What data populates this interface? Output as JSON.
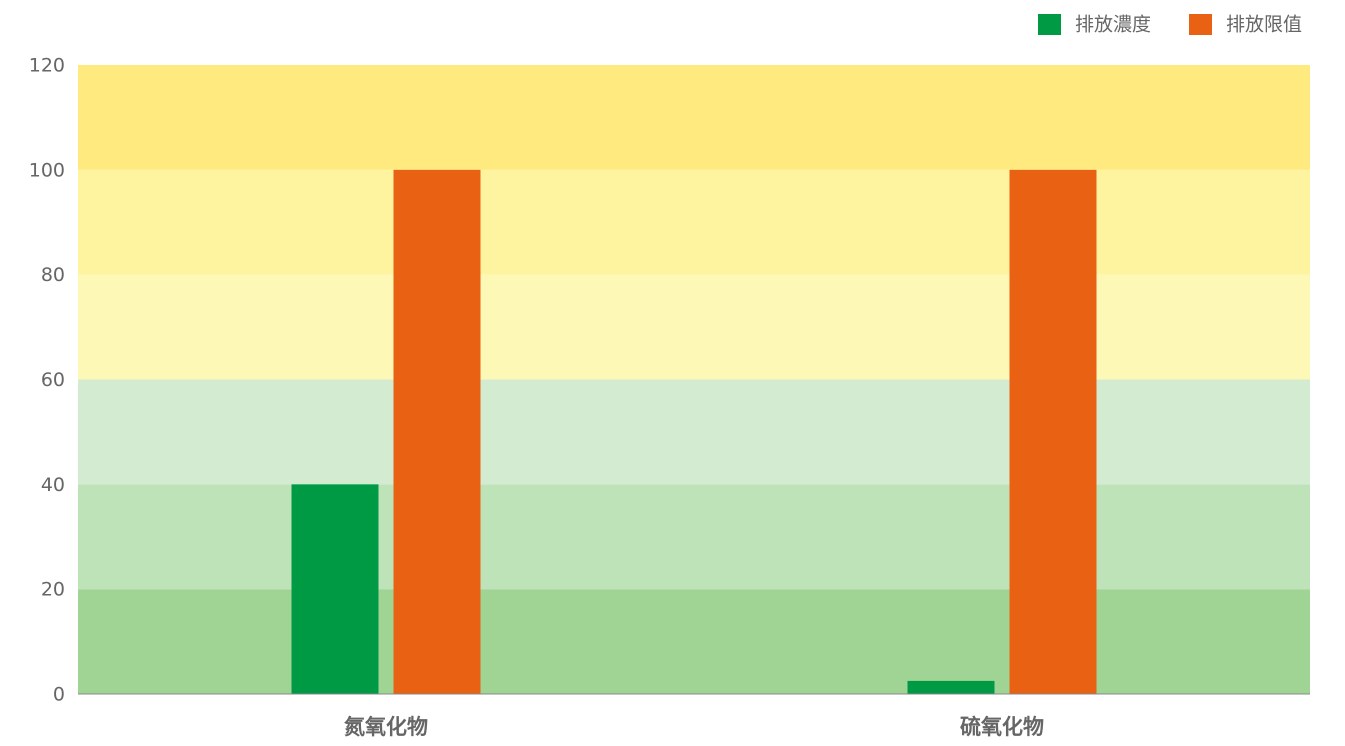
{
  "chart_data": {
    "type": "bar",
    "categories": [
      "氮氧化物",
      "硫氧化物"
    ],
    "series": [
      {
        "name": "排放濃度",
        "values": [
          40,
          2.5
        ],
        "color": "#009a44"
      },
      {
        "name": "排放限值",
        "values": [
          100,
          100
        ],
        "color": "#e96112"
      }
    ],
    "ylim": [
      0,
      120
    ],
    "yticks": [
      0,
      20,
      40,
      60,
      80,
      100,
      120
    ],
    "legend_position": "top-right",
    "background_bands": [
      {
        "from": 0,
        "to": 20,
        "color": "#a0d495"
      },
      {
        "from": 20,
        "to": 40,
        "color": "#bfe3b8"
      },
      {
        "from": 40,
        "to": 60,
        "color": "#d3ebd0"
      },
      {
        "from": 60,
        "to": 80,
        "color": "#fef8b7"
      },
      {
        "from": 80,
        "to": 100,
        "color": "#fef39f"
      },
      {
        "from": 100,
        "to": 120,
        "color": "#ffea80"
      }
    ],
    "axis_text_color": "#666666",
    "baseline_color": "#888888"
  }
}
